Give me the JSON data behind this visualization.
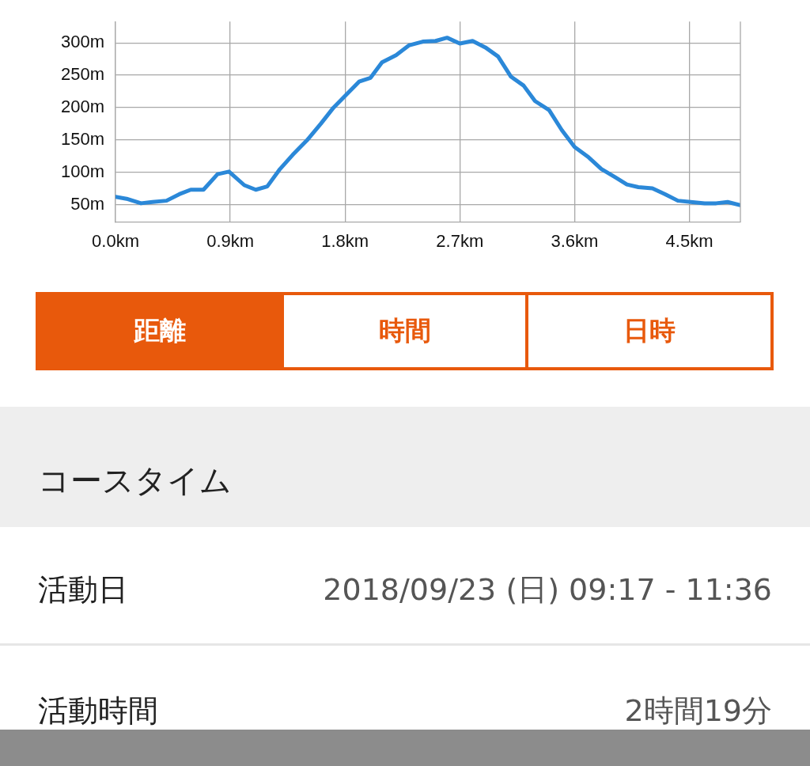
{
  "chart_data": {
    "type": "line",
    "x": [
      0,
      0.087,
      0.2,
      0.29,
      0.4,
      0.5,
      0.59,
      0.69,
      0.8,
      0.89,
      1.01,
      1.1,
      1.19,
      1.29,
      1.39,
      1.5,
      1.61,
      1.71,
      1.8,
      1.91,
      2.0,
      2.09,
      2.2,
      2.3,
      2.41,
      2.51,
      2.6,
      2.7,
      2.8,
      2.9,
      3.0,
      3.1,
      3.2,
      3.29,
      3.4,
      3.5,
      3.6,
      3.71,
      3.81,
      3.92,
      4.01,
      4.1,
      4.21,
      4.31,
      4.41,
      4.51,
      4.62,
      4.71,
      4.8,
      4.9
    ],
    "series": [
      {
        "color": "#2b88d8",
        "values": [
          62,
          59,
          52,
          54,
          56,
          66,
          73,
          73,
          97,
          101,
          80,
          73,
          78,
          105,
          127,
          149,
          175,
          200,
          218,
          240,
          246,
          270,
          281,
          296,
          302,
          303,
          308,
          299,
          303,
          293,
          279,
          248,
          234,
          210,
          196,
          165,
          139,
          123,
          105,
          92,
          81,
          77,
          75,
          66,
          56,
          54,
          52,
          52,
          54,
          49
        ]
      }
    ],
    "xlim": [
      0,
      4.9
    ],
    "ylim": [
      22.5,
      333
    ],
    "xticks": [
      {
        "value": 0,
        "label": "0.0km"
      },
      {
        "value": 0.9,
        "label": "0.9km"
      },
      {
        "value": 1.8,
        "label": "1.8km"
      },
      {
        "value": 2.7,
        "label": "2.7km"
      },
      {
        "value": 3.6,
        "label": "3.6km"
      },
      {
        "value": 4.5,
        "label": "4.5km"
      }
    ],
    "yticks": [
      {
        "value": 50,
        "label": "50m"
      },
      {
        "value": 100,
        "label": "100m"
      },
      {
        "value": 150,
        "label": "150m"
      },
      {
        "value": 200,
        "label": "200m"
      },
      {
        "value": 250,
        "label": "250m"
      },
      {
        "value": 300,
        "label": "300m"
      }
    ],
    "grid": true,
    "legend": false,
    "marker": "none",
    "line_style": "solid",
    "annotations": [
      "距離",
      "時間",
      "日時",
      "コースタイム",
      "活動日",
      "2018/09/23 (日) 09:17 - 11:36",
      "活動時間",
      "2時間19分"
    ]
  }
}
